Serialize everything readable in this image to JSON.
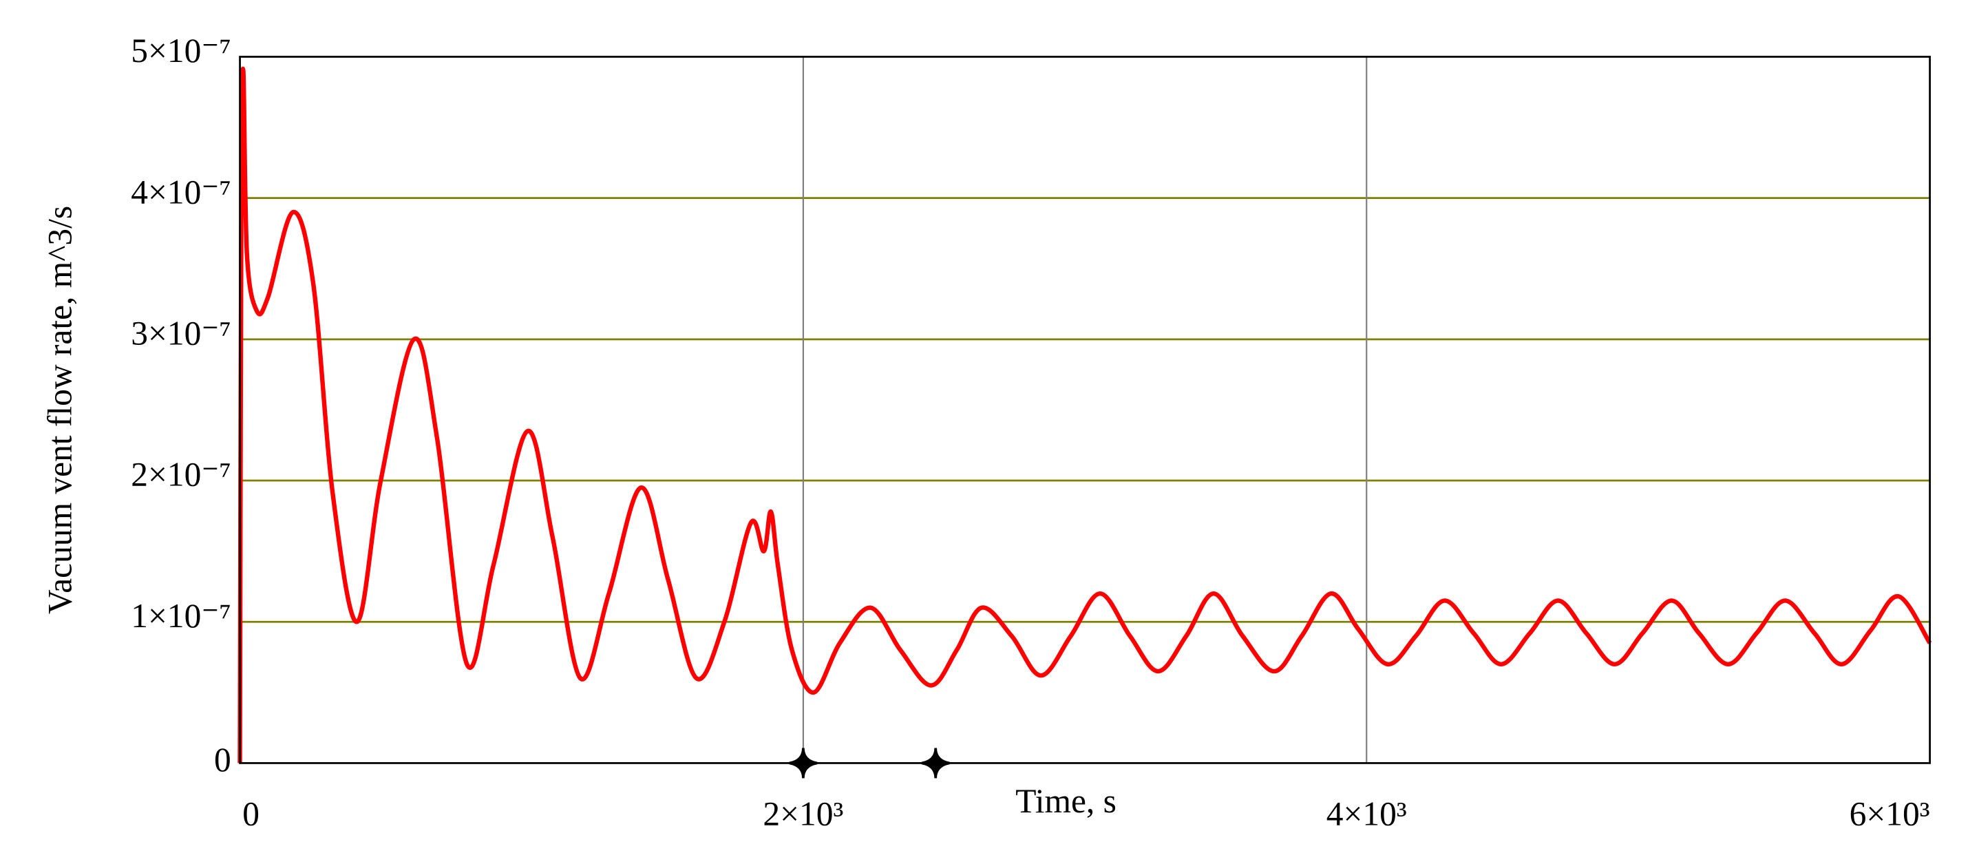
{
  "chart_data": {
    "type": "line",
    "xlabel": "Time, s",
    "ylabel": "Vacuum vent flow rate, m^3/s",
    "x": [
      0,
      5,
      12,
      25,
      60,
      100,
      188,
      260,
      330,
      416,
      500,
      618,
      700,
      806,
      900,
      1021,
      1110,
      1209,
      1310,
      1424,
      1520,
      1621,
      1720,
      1814,
      1860,
      1885,
      1910,
      1960,
      2037,
      2130,
      2239,
      2345,
      2454,
      2545,
      2633,
      2740,
      2844,
      2950,
      3054,
      3160,
      3260,
      3360,
      3457,
      3560,
      3672,
      3770,
      3874,
      3970,
      4075,
      4175,
      4277,
      4380,
      4478,
      4580,
      4680,
      4780,
      4881,
      4980,
      5083,
      5180,
      5284,
      5385,
      5486,
      5590,
      5687,
      5790,
      5889,
      6000
    ],
    "series": [
      {
        "color": "#ff0000",
        "values": [
          0,
          4e-07,
          4.9e-07,
          3.6e-07,
          3.2e-07,
          3.3e-07,
          3.9e-07,
          3.4e-07,
          1.9e-07,
          1e-07,
          2e-07,
          3e-07,
          2.3e-07,
          7e-08,
          1.4e-07,
          2.35e-07,
          1.6e-07,
          6e-08,
          1.2e-07,
          1.95e-07,
          1.3e-07,
          6e-08,
          1e-07,
          1.7e-07,
          1.5e-07,
          1.78e-07,
          1.4e-07,
          8e-08,
          5e-08,
          8.5e-08,
          1.1e-07,
          8e-08,
          5.5e-08,
          8e-08,
          1.1e-07,
          9e-08,
          6.2e-08,
          9e-08,
          1.2e-07,
          9e-08,
          6.5e-08,
          9e-08,
          1.2e-07,
          9e-08,
          6.5e-08,
          9e-08,
          1.2e-07,
          9.5e-08,
          7e-08,
          9e-08,
          1.15e-07,
          9.2e-08,
          7e-08,
          9.2e-08,
          1.15e-07,
          9.2e-08,
          7e-08,
          9.2e-08,
          1.15e-07,
          9.2e-08,
          7e-08,
          9.2e-08,
          1.15e-07,
          9.2e-08,
          7e-08,
          9.4e-08,
          1.18e-07,
          8.5e-08
        ]
      }
    ],
    "x_markers": [
      2000,
      2470
    ],
    "xlim": [
      0,
      6000
    ],
    "xticks": [
      0,
      {
        "value": 2000,
        "label": "2×10³"
      },
      {
        "value": 4000,
        "label": "4×10³"
      },
      {
        "value": 6000,
        "label": "6×10³"
      }
    ],
    "ylim": [
      0,
      5e-07
    ],
    "yticks": [
      0,
      {
        "value": 1e-07,
        "label": "1×10⁻⁷"
      },
      {
        "value": 2e-07,
        "label": "2×10⁻⁷"
      },
      {
        "value": 3e-07,
        "label": "3×10⁻⁷"
      },
      {
        "value": 4e-07,
        "label": "4×10⁻⁷"
      },
      {
        "value": 5e-07,
        "label": "5×10⁻⁷"
      }
    ],
    "grid": true
  }
}
